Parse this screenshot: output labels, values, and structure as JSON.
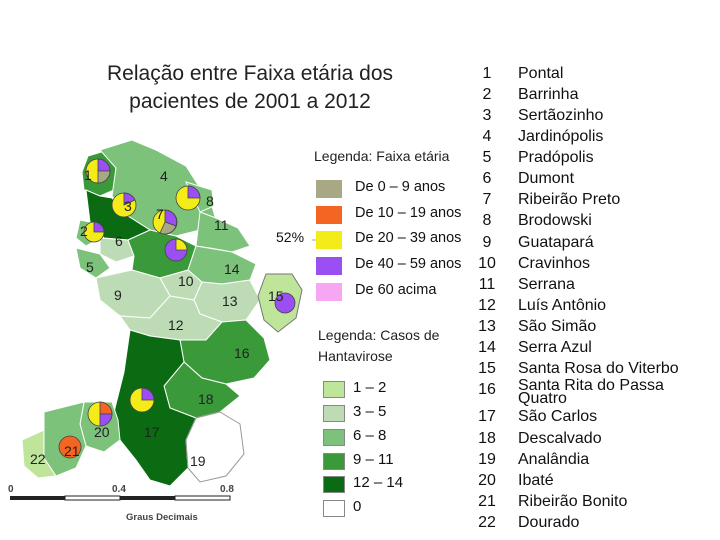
{
  "title_line1": "Relação entre Faixa etária dos",
  "title_line2": "pacientes de 2001 a 2012",
  "age_legend": {
    "title": "Legenda: Faixa etária",
    "items": [
      {
        "label": "De 0 – 9 anos",
        "color": "#a9a884"
      },
      {
        "label": "De 10 – 19 anos",
        "color": "#f26522"
      },
      {
        "label": "De 20 – 39 anos",
        "color": "#f3ec19"
      },
      {
        "label": "De 40 – 59 anos",
        "color": "#9b4ff2"
      },
      {
        "label": "De 60 acima",
        "color": "#f6a6f2"
      }
    ]
  },
  "cases_legend": {
    "title_line1": "Legenda: Casos de",
    "title_line2": "Hantavirose",
    "items": [
      {
        "label": "1 – 2",
        "color": "#bfe59b"
      },
      {
        "label": "3 – 5",
        "color": "#bddcb6"
      },
      {
        "label": "6 – 8",
        "color": "#7cc27a"
      },
      {
        "label": "9 – 11",
        "color": "#3a9a3a"
      },
      {
        "label": "12 – 14",
        "color": "#0b6b12"
      },
      {
        "label": "0",
        "color": "#ffffff"
      }
    ]
  },
  "pie_percent_label": "52%",
  "map_labels": [
    "1",
    "2",
    "3",
    "4",
    "5",
    "6",
    "7",
    "8",
    "9",
    "10",
    "11",
    "12",
    "13",
    "14",
    "15",
    "16",
    "17",
    "18",
    "19",
    "20",
    "21",
    "22"
  ],
  "scale": {
    "ticks": [
      "0",
      "0.4",
      "0.8"
    ],
    "unit": "Graus Decimais"
  },
  "municipalities": [
    {
      "num": "1",
      "name": "Pontal"
    },
    {
      "num": "2",
      "name": "Barrinha"
    },
    {
      "num": "3",
      "name": "Sertãozinho"
    },
    {
      "num": "4",
      "name": "Jardinópolis"
    },
    {
      "num": "5",
      "name": "Pradópolis"
    },
    {
      "num": "6",
      "name": "Dumont"
    },
    {
      "num": "7",
      "name": "Ribeirão Preto"
    },
    {
      "num": "8",
      "name": "Brodowski"
    },
    {
      "num": "9",
      "name": "Guatapará"
    },
    {
      "num": "10",
      "name": "Cravinhos"
    },
    {
      "num": "11",
      "name": "Serrana"
    },
    {
      "num": "12",
      "name": "Luís Antônio"
    },
    {
      "num": "13",
      "name": "São Simão"
    },
    {
      "num": "14",
      "name": "Serra Azul"
    },
    {
      "num": "15",
      "name": "Santa Rosa do Viterbo"
    },
    {
      "num": "16",
      "name": "Santa Rita do Passa Quatro"
    },
    {
      "num": "17",
      "name": "São Carlos"
    },
    {
      "num": "18",
      "name": "Descalvado"
    },
    {
      "num": "19",
      "name": "Analândia"
    },
    {
      "num": "20",
      "name": "Ibaté"
    },
    {
      "num": "21",
      "name": "Ribeirão Bonito"
    },
    {
      "num": "22",
      "name": "Dourado"
    }
  ]
}
